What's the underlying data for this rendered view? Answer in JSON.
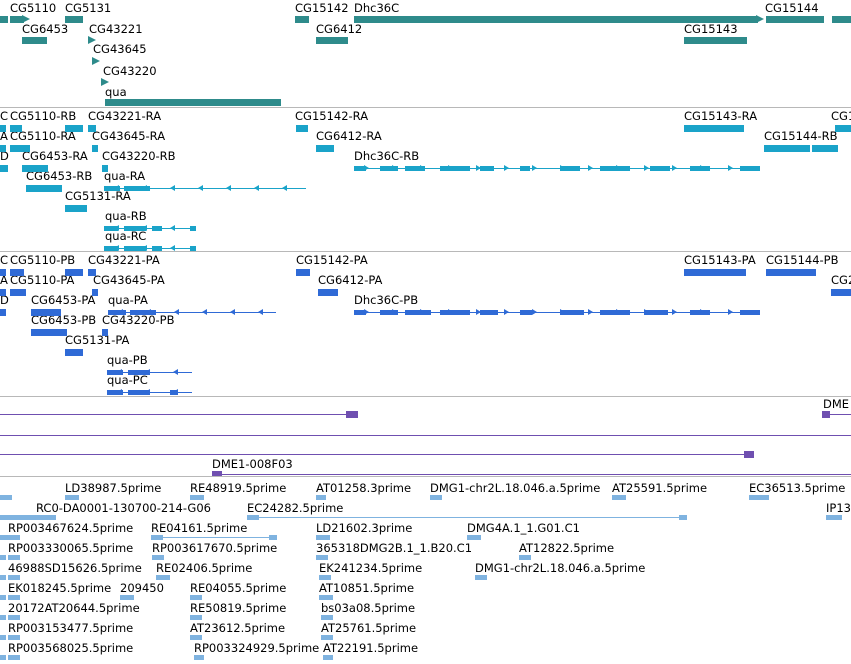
{
  "colors": {
    "gene": "#2e8b8b",
    "mrna": "#1aa3c9",
    "protein": "#2f6ad6",
    "purple": "#6f4fb0",
    "est": "#7fb3e0",
    "separator": "#b8b8b8"
  },
  "gene_track": {
    "labels": [
      "CG5110",
      "CG5131",
      "CG6453",
      "CG43221",
      "CG43645",
      "CG43220",
      "qua",
      "CG15142",
      "Dhc36C",
      "CG6412",
      "CG15144",
      "CG15143"
    ]
  },
  "mrna_track": {
    "labels": [
      "C",
      "CG5110-RB",
      "CG43221-RA",
      "CG15142-RA",
      "CG15143-RA",
      "CG1",
      "A",
      "CG5110-RA",
      "CG43645-RA",
      "CG6412-RA",
      "CG15144-RB",
      "D",
      "CG6453-RA",
      "CG43220-RB",
      "Dhc36C-RB",
      "CG6453-RB",
      "qua-RA",
      "CG5131-RA",
      "qua-RB",
      "qua-RC"
    ]
  },
  "protein_track": {
    "labels": [
      "C",
      "CG5110-PB",
      "CG43221-PA",
      "CG15142-PA",
      "CG15143-PA",
      "CG15144-PB",
      "A",
      "CG5110-PA",
      "CG43645-PA",
      "CG6412-PA",
      "CG2",
      "D",
      "CG6453-PA",
      "qua-PA",
      "Dhc36C-PB",
      "CG6453-PB",
      "CG43220-PB",
      "CG5131-PA",
      "qua-PB",
      "qua-PC"
    ]
  },
  "clone_track": {
    "labels": [
      "DME",
      "DME1-008F03"
    ]
  },
  "est_track": {
    "labels": [
      "LD38987.5prime",
      "RE48919.5prime",
      "AT01258.3prime",
      "DMG1-chr2L.18.046.a.5prime",
      "AT25591.5prime",
      "EC36513.5prime",
      "RC0-DA0001-130700-214-G06",
      "EC24282.5prime",
      "IP13",
      "RP003467624.5prime",
      "RE04161.5prime",
      "LD21602.3prime",
      "DMG4A.1_1.G01.C1",
      "RP003330065.5prime",
      "RP003617670.5prime",
      "365318DMG2B.1_1.B20.C1",
      "AT12822.5prime",
      "46988SD15626.5prime",
      "RE02406.5prime",
      "EK241234.5prime",
      "DMG1-chr2L.18.046.a.5prime",
      "EK018245.5prime",
      "209450",
      "RE04055.5prime",
      "AT10851.5prime",
      "20172AT20644.5prime",
      "RE50819.5prime",
      "bs03a08.5prime",
      "RP003153477.5prime",
      "AT23612.5prime",
      "AT25761.5prime",
      "RP003568025.5prime",
      "RP003324929.5prime",
      "AT22191.5prime"
    ]
  }
}
